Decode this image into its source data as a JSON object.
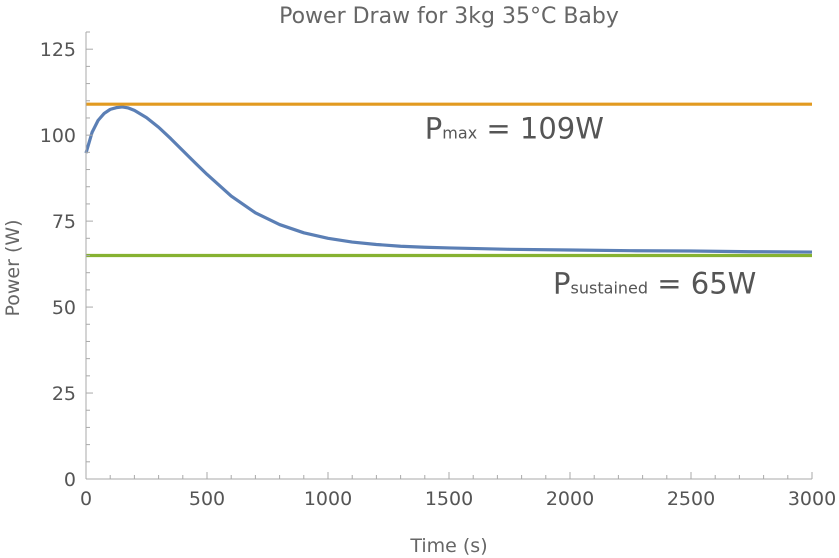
{
  "chart_data": {
    "type": "line",
    "title": "Power Draw for 3kg 35°C Baby",
    "xlabel": "Time (s)",
    "ylabel": "Power (W)",
    "xlim": [
      0,
      3000
    ],
    "ylim": [
      0,
      130
    ],
    "x_ticks": [
      0,
      500,
      1000,
      1500,
      2000,
      2500,
      3000
    ],
    "y_ticks": [
      0,
      25,
      50,
      75,
      100,
      125
    ],
    "grid": false,
    "series": [
      {
        "color": "#5b7fb5",
        "x": [
          0,
          25,
          50,
          75,
          100,
          125,
          150,
          175,
          200,
          250,
          300,
          350,
          400,
          450,
          500,
          600,
          700,
          800,
          900,
          1000,
          1100,
          1200,
          1300,
          1400,
          1500,
          1750,
          2000,
          2250,
          2500,
          2750,
          3000
        ],
        "y": [
          94.8,
          100.8,
          104.3,
          106.3,
          107.5,
          108.0,
          108.2,
          107.9,
          107.2,
          105.1,
          102.3,
          99.0,
          95.5,
          92.0,
          88.6,
          82.3,
          77.4,
          74.0,
          71.6,
          70.0,
          68.9,
          68.2,
          67.7,
          67.4,
          67.2,
          66.8,
          66.6,
          66.4,
          66.3,
          66.1,
          66.0
        ]
      },
      {
        "color": "#e29a20",
        "x": [
          0,
          3000
        ],
        "y": [
          109,
          109
        ]
      },
      {
        "color": "#86b231",
        "x": [
          0,
          3000
        ],
        "y": [
          65,
          65
        ]
      }
    ],
    "annotations": [
      {
        "main": "P",
        "sub": "max",
        "text": " = 109W",
        "at_x": 1400,
        "at_y": 99
      },
      {
        "main": "P",
        "sub": "sustained",
        "text": " = 65W",
        "at_x": 1930,
        "at_y": 54
      }
    ]
  }
}
